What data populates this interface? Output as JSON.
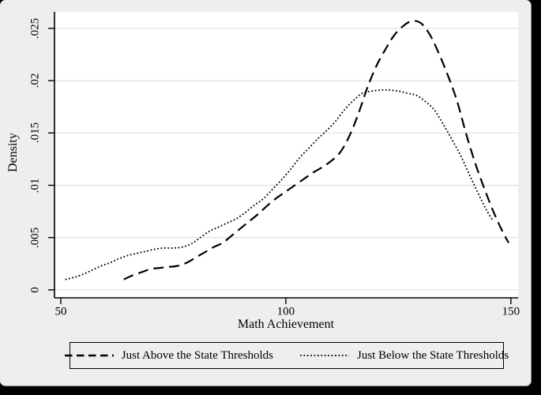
{
  "figure": {
    "page_background": "#000000",
    "canvas_background": "#eeeeee",
    "plot_background": "#ffffff",
    "grid_color": "#e0e0e0",
    "line_color": "#000000"
  },
  "chart_data": {
    "type": "line",
    "title": "",
    "xlabel": "Math Achievement",
    "ylabel": "Density",
    "grid": "horizontal",
    "legend_position": "bottom",
    "xlim": [
      48.6,
      151.6
    ],
    "ylim": [
      -0.00076,
      0.02658
    ],
    "xticks": [
      {
        "value": 50,
        "label": "50"
      },
      {
        "value": 100,
        "label": "100"
      },
      {
        "value": 150,
        "label": "150"
      }
    ],
    "yticks": [
      {
        "value": 0,
        "label": "0"
      },
      {
        "value": 0.005,
        "label": ".005"
      },
      {
        "value": 0.01,
        "label": ".01"
      },
      {
        "value": 0.015,
        "label": ".015"
      },
      {
        "value": 0.02,
        "label": ".02"
      },
      {
        "value": 0.025,
        "label": ".025"
      }
    ],
    "series": [
      {
        "name": "Just Above the State Thresholds",
        "style": "dashed",
        "points": [
          [
            64,
            0.001
          ],
          [
            66,
            0.0014
          ],
          [
            68,
            0.0017
          ],
          [
            70,
            0.002
          ],
          [
            72,
            0.0021
          ],
          [
            74,
            0.0022
          ],
          [
            76,
            0.0023
          ],
          [
            78,
            0.0026
          ],
          [
            80,
            0.0031
          ],
          [
            82,
            0.0036
          ],
          [
            84,
            0.0041
          ],
          [
            86,
            0.0045
          ],
          [
            88,
            0.0052
          ],
          [
            90,
            0.0059
          ],
          [
            92,
            0.0066
          ],
          [
            94,
            0.0073
          ],
          [
            96,
            0.0081
          ],
          [
            98,
            0.0088
          ],
          [
            100,
            0.0094
          ],
          [
            102,
            0.01
          ],
          [
            104,
            0.0106
          ],
          [
            106,
            0.0112
          ],
          [
            108,
            0.0117
          ],
          [
            110,
            0.0123
          ],
          [
            112,
            0.0131
          ],
          [
            114,
            0.0146
          ],
          [
            116,
            0.0167
          ],
          [
            118,
            0.0192
          ],
          [
            120,
            0.0213
          ],
          [
            122,
            0.0229
          ],
          [
            124,
            0.0243
          ],
          [
            126,
            0.0252
          ],
          [
            128,
            0.0257
          ],
          [
            130,
            0.0255
          ],
          [
            132,
            0.0244
          ],
          [
            134,
            0.0226
          ],
          [
            136,
            0.0205
          ],
          [
            138,
            0.0181
          ],
          [
            140,
            0.015
          ],
          [
            142,
            0.0122
          ],
          [
            144,
            0.0098
          ],
          [
            146,
            0.0076
          ],
          [
            148,
            0.0057
          ],
          [
            149.5,
            0.0045
          ]
        ]
      },
      {
        "name": "Just Below the State Thresholds",
        "style": "dotted",
        "points": [
          [
            51,
            0.001
          ],
          [
            53,
            0.0012
          ],
          [
            55,
            0.0015
          ],
          [
            57,
            0.0019
          ],
          [
            59,
            0.0023
          ],
          [
            61,
            0.0026
          ],
          [
            63,
            0.003
          ],
          [
            65,
            0.0033
          ],
          [
            67,
            0.0035
          ],
          [
            69,
            0.0037
          ],
          [
            71,
            0.0039
          ],
          [
            73,
            0.004
          ],
          [
            75,
            0.004
          ],
          [
            77,
            0.0041
          ],
          [
            79,
            0.0044
          ],
          [
            81,
            0.005
          ],
          [
            83,
            0.0056
          ],
          [
            85,
            0.006
          ],
          [
            87,
            0.0064
          ],
          [
            89,
            0.0068
          ],
          [
            91,
            0.0074
          ],
          [
            93,
            0.0081
          ],
          [
            95,
            0.0087
          ],
          [
            97,
            0.0096
          ],
          [
            99,
            0.0105
          ],
          [
            101,
            0.0115
          ],
          [
            103,
            0.0126
          ],
          [
            105,
            0.0135
          ],
          [
            107,
            0.0144
          ],
          [
            109,
            0.0152
          ],
          [
            111,
            0.0161
          ],
          [
            113,
            0.0172
          ],
          [
            115,
            0.0181
          ],
          [
            117,
            0.0188
          ],
          [
            119,
            0.019
          ],
          [
            121,
            0.0191
          ],
          [
            123,
            0.0191
          ],
          [
            125,
            0.019
          ],
          [
            127,
            0.0188
          ],
          [
            129,
            0.0186
          ],
          [
            131,
            0.018
          ],
          [
            133,
            0.0172
          ],
          [
            135,
            0.0158
          ],
          [
            137,
            0.0143
          ],
          [
            139,
            0.0127
          ],
          [
            141,
            0.0108
          ],
          [
            143,
            0.009
          ],
          [
            144.5,
            0.0077
          ],
          [
            146,
            0.0066
          ]
        ]
      }
    ]
  }
}
